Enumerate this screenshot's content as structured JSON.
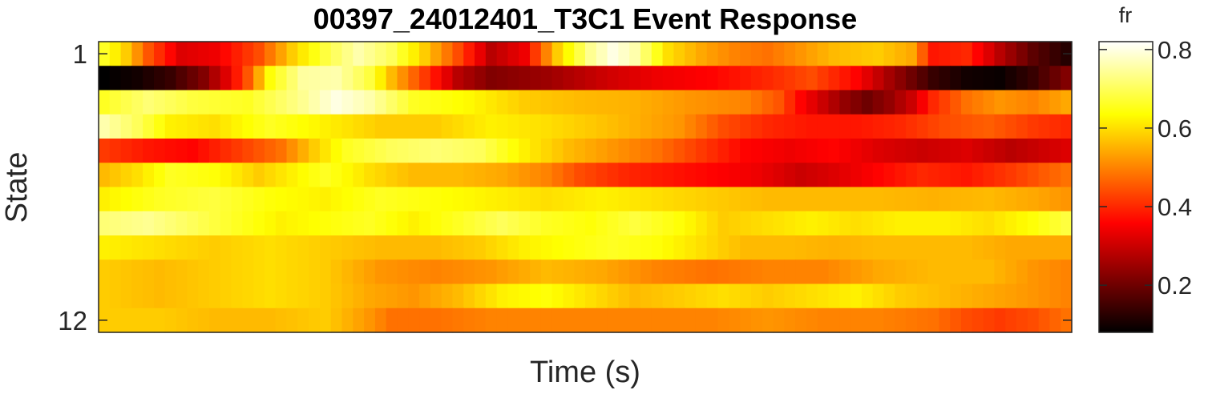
{
  "chart_data": {
    "type": "heatmap",
    "title": "00397_24012401_T3C1 Event Response",
    "xlabel": "Time (s)",
    "ylabel": "State",
    "y_tick_labels": [
      "1",
      "12"
    ],
    "y_tick_values": [
      1,
      12
    ],
    "rows": 12,
    "colormap": "hot",
    "colorbar": {
      "label": "fr",
      "range": [
        0.08,
        0.82
      ],
      "ticks": [
        0.2,
        0.4,
        0.6,
        0.8
      ],
      "tick_labels": [
        "0.2",
        "0.4",
        "0.6",
        "0.8"
      ]
    },
    "profiles": [
      [
        [
          0,
          0.66
        ],
        [
          2,
          0.58
        ],
        [
          4,
          0.45
        ],
        [
          7,
          0.32
        ],
        [
          10,
          0.34
        ],
        [
          14,
          0.44
        ],
        [
          17,
          0.58
        ],
        [
          20,
          0.68
        ],
        [
          23,
          0.76
        ],
        [
          26,
          0.7
        ],
        [
          29,
          0.58
        ],
        [
          32,
          0.44
        ],
        [
          35,
          0.28
        ],
        [
          38,
          0.34
        ],
        [
          41,
          0.58
        ],
        [
          44,
          0.74
        ],
        [
          46,
          0.8
        ],
        [
          48,
          0.76
        ],
        [
          51,
          0.6
        ],
        [
          54,
          0.54
        ],
        [
          57,
          0.5
        ],
        [
          60,
          0.48
        ],
        [
          63,
          0.52
        ],
        [
          66,
          0.56
        ],
        [
          70,
          0.58
        ],
        [
          73,
          0.54
        ],
        [
          75,
          0.38
        ],
        [
          78,
          0.4
        ],
        [
          81,
          0.28
        ],
        [
          84,
          0.18
        ],
        [
          87,
          0.12
        ]
      ],
      [
        [
          0,
          0.08
        ],
        [
          3,
          0.1
        ],
        [
          6,
          0.14
        ],
        [
          9,
          0.22
        ],
        [
          11,
          0.32
        ],
        [
          13,
          0.45
        ],
        [
          15,
          0.64
        ],
        [
          18,
          0.75
        ],
        [
          21,
          0.76
        ],
        [
          24,
          0.68
        ],
        [
          26,
          0.56
        ],
        [
          29,
          0.42
        ],
        [
          32,
          0.28
        ],
        [
          35,
          0.22
        ],
        [
          40,
          0.25
        ],
        [
          45,
          0.3
        ],
        [
          50,
          0.34
        ],
        [
          55,
          0.36
        ],
        [
          60,
          0.4
        ],
        [
          64,
          0.44
        ],
        [
          68,
          0.36
        ],
        [
          71,
          0.26
        ],
        [
          73,
          0.2
        ],
        [
          75,
          0.14
        ],
        [
          78,
          0.1
        ],
        [
          81,
          0.09
        ],
        [
          84,
          0.14
        ],
        [
          87,
          0.22
        ]
      ],
      [
        [
          0,
          0.66
        ],
        [
          4,
          0.72
        ],
        [
          8,
          0.68
        ],
        [
          13,
          0.66
        ],
        [
          18,
          0.74
        ],
        [
          21,
          0.8
        ],
        [
          24,
          0.76
        ],
        [
          28,
          0.66
        ],
        [
          33,
          0.63
        ],
        [
          38,
          0.58
        ],
        [
          43,
          0.56
        ],
        [
          48,
          0.55
        ],
        [
          53,
          0.52
        ],
        [
          58,
          0.5
        ],
        [
          61,
          0.45
        ],
        [
          63,
          0.36
        ],
        [
          65,
          0.3
        ],
        [
          67,
          0.24
        ],
        [
          69,
          0.2
        ],
        [
          71,
          0.24
        ],
        [
          73,
          0.3
        ],
        [
          75,
          0.4
        ],
        [
          78,
          0.48
        ],
        [
          81,
          0.52
        ],
        [
          84,
          0.5
        ],
        [
          87,
          0.54
        ]
      ],
      [
        [
          0,
          0.76
        ],
        [
          3,
          0.7
        ],
        [
          6,
          0.62
        ],
        [
          10,
          0.6
        ],
        [
          15,
          0.66
        ],
        [
          20,
          0.62
        ],
        [
          25,
          0.58
        ],
        [
          30,
          0.58
        ],
        [
          35,
          0.62
        ],
        [
          40,
          0.6
        ],
        [
          45,
          0.57
        ],
        [
          52,
          0.52
        ],
        [
          56,
          0.44
        ],
        [
          60,
          0.4
        ],
        [
          64,
          0.38
        ],
        [
          68,
          0.38
        ],
        [
          72,
          0.4
        ],
        [
          76,
          0.44
        ],
        [
          80,
          0.46
        ],
        [
          84,
          0.42
        ],
        [
          87,
          0.4
        ]
      ],
      [
        [
          0,
          0.42
        ],
        [
          4,
          0.38
        ],
        [
          8,
          0.36
        ],
        [
          12,
          0.42
        ],
        [
          16,
          0.48
        ],
        [
          19,
          0.58
        ],
        [
          22,
          0.66
        ],
        [
          26,
          0.7
        ],
        [
          30,
          0.72
        ],
        [
          34,
          0.7
        ],
        [
          38,
          0.62
        ],
        [
          42,
          0.56
        ],
        [
          46,
          0.52
        ],
        [
          50,
          0.48
        ],
        [
          54,
          0.42
        ],
        [
          58,
          0.36
        ],
        [
          62,
          0.34
        ],
        [
          66,
          0.36
        ],
        [
          70,
          0.32
        ],
        [
          74,
          0.3
        ],
        [
          78,
          0.32
        ],
        [
          82,
          0.28
        ],
        [
          87,
          0.32
        ]
      ],
      [
        [
          0,
          0.56
        ],
        [
          3,
          0.6
        ],
        [
          6,
          0.66
        ],
        [
          10,
          0.64
        ],
        [
          14,
          0.58
        ],
        [
          17,
          0.62
        ],
        [
          20,
          0.66
        ],
        [
          24,
          0.6
        ],
        [
          28,
          0.56
        ],
        [
          32,
          0.56
        ],
        [
          36,
          0.54
        ],
        [
          40,
          0.5
        ],
        [
          43,
          0.44
        ],
        [
          47,
          0.4
        ],
        [
          51,
          0.38
        ],
        [
          55,
          0.36
        ],
        [
          59,
          0.34
        ],
        [
          63,
          0.3
        ],
        [
          66,
          0.32
        ],
        [
          70,
          0.36
        ],
        [
          74,
          0.4
        ],
        [
          78,
          0.38
        ],
        [
          82,
          0.42
        ],
        [
          87,
          0.48
        ]
      ],
      [
        [
          0,
          0.62
        ],
        [
          5,
          0.66
        ],
        [
          10,
          0.68
        ],
        [
          15,
          0.64
        ],
        [
          20,
          0.62
        ],
        [
          25,
          0.66
        ],
        [
          30,
          0.64
        ],
        [
          35,
          0.62
        ],
        [
          40,
          0.6
        ],
        [
          45,
          0.62
        ],
        [
          50,
          0.6
        ],
        [
          55,
          0.58
        ],
        [
          60,
          0.56
        ],
        [
          65,
          0.56
        ],
        [
          70,
          0.56
        ],
        [
          75,
          0.55
        ],
        [
          80,
          0.56
        ],
        [
          84,
          0.54
        ],
        [
          87,
          0.52
        ]
      ],
      [
        [
          0,
          0.72
        ],
        [
          4,
          0.74
        ],
        [
          8,
          0.7
        ],
        [
          12,
          0.66
        ],
        [
          16,
          0.62
        ],
        [
          20,
          0.64
        ],
        [
          24,
          0.66
        ],
        [
          28,
          0.62
        ],
        [
          32,
          0.66
        ],
        [
          36,
          0.7
        ],
        [
          40,
          0.66
        ],
        [
          44,
          0.64
        ],
        [
          48,
          0.68
        ],
        [
          52,
          0.64
        ],
        [
          56,
          0.58
        ],
        [
          60,
          0.6
        ],
        [
          64,
          0.62
        ],
        [
          68,
          0.6
        ],
        [
          72,
          0.62
        ],
        [
          76,
          0.62
        ],
        [
          80,
          0.6
        ],
        [
          84,
          0.64
        ],
        [
          87,
          0.68
        ]
      ],
      [
        [
          0,
          0.62
        ],
        [
          5,
          0.6
        ],
        [
          10,
          0.58
        ],
        [
          15,
          0.6
        ],
        [
          20,
          0.58
        ],
        [
          25,
          0.56
        ],
        [
          30,
          0.56
        ],
        [
          34,
          0.58
        ],
        [
          38,
          0.62
        ],
        [
          42,
          0.64
        ],
        [
          46,
          0.66
        ],
        [
          50,
          0.64
        ],
        [
          54,
          0.6
        ],
        [
          58,
          0.56
        ],
        [
          62,
          0.56
        ],
        [
          66,
          0.55
        ],
        [
          70,
          0.56
        ],
        [
          74,
          0.56
        ],
        [
          78,
          0.56
        ],
        [
          82,
          0.54
        ],
        [
          87,
          0.54
        ]
      ],
      [
        [
          0,
          0.58
        ],
        [
          5,
          0.56
        ],
        [
          10,
          0.58
        ],
        [
          15,
          0.6
        ],
        [
          20,
          0.58
        ],
        [
          25,
          0.52
        ],
        [
          30,
          0.5
        ],
        [
          35,
          0.52
        ],
        [
          40,
          0.56
        ],
        [
          45,
          0.54
        ],
        [
          50,
          0.5
        ],
        [
          55,
          0.48
        ],
        [
          60,
          0.5
        ],
        [
          65,
          0.5
        ],
        [
          70,
          0.54
        ],
        [
          75,
          0.56
        ],
        [
          80,
          0.56
        ],
        [
          84,
          0.52
        ],
        [
          87,
          0.5
        ]
      ],
      [
        [
          0,
          0.58
        ],
        [
          5,
          0.56
        ],
        [
          10,
          0.58
        ],
        [
          15,
          0.6
        ],
        [
          20,
          0.58
        ],
        [
          24,
          0.54
        ],
        [
          28,
          0.52
        ],
        [
          32,
          0.56
        ],
        [
          36,
          0.62
        ],
        [
          40,
          0.64
        ],
        [
          44,
          0.6
        ],
        [
          48,
          0.56
        ],
        [
          52,
          0.58
        ],
        [
          56,
          0.6
        ],
        [
          60,
          0.58
        ],
        [
          64,
          0.6
        ],
        [
          68,
          0.62
        ],
        [
          72,
          0.58
        ],
        [
          76,
          0.56
        ],
        [
          80,
          0.54
        ],
        [
          84,
          0.52
        ],
        [
          87,
          0.5
        ]
      ],
      [
        [
          0,
          0.58
        ],
        [
          5,
          0.58
        ],
        [
          10,
          0.56
        ],
        [
          15,
          0.56
        ],
        [
          20,
          0.58
        ],
        [
          24,
          0.52
        ],
        [
          26,
          0.48
        ],
        [
          30,
          0.48
        ],
        [
          35,
          0.5
        ],
        [
          40,
          0.5
        ],
        [
          45,
          0.5
        ],
        [
          50,
          0.5
        ],
        [
          55,
          0.5
        ],
        [
          60,
          0.52
        ],
        [
          65,
          0.5
        ],
        [
          70,
          0.5
        ],
        [
          75,
          0.48
        ],
        [
          78,
          0.44
        ],
        [
          81,
          0.42
        ],
        [
          84,
          0.44
        ],
        [
          87,
          0.48
        ]
      ]
    ]
  }
}
